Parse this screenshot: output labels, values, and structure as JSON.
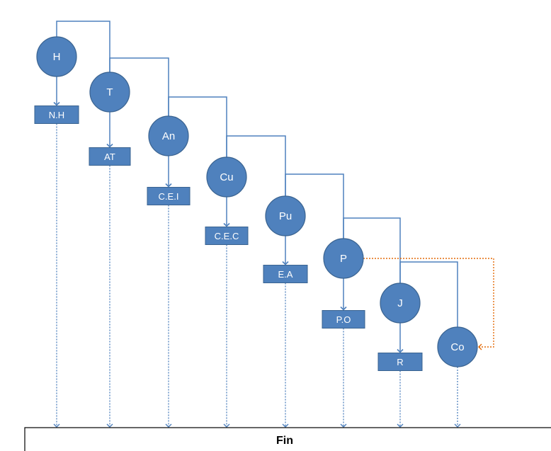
{
  "colors": {
    "node_fill": "#4f81bd",
    "node_stroke": "#3a6390",
    "connector": "#4f81bd",
    "dotted_arrow": "#4f81bd",
    "feedback_arrow": "#e46c0a",
    "fin_border": "#000000"
  },
  "nodes": [
    {
      "id": "H",
      "label": "H",
      "box": "N.H"
    },
    {
      "id": "T",
      "label": "T",
      "box": "AT"
    },
    {
      "id": "An",
      "label": "An",
      "box": "C.E.I"
    },
    {
      "id": "Cu",
      "label": "Cu",
      "box": "C.E.C"
    },
    {
      "id": "Pu",
      "label": "Pu",
      "box": "E.A"
    },
    {
      "id": "P",
      "label": "P",
      "box": "P.O"
    },
    {
      "id": "J",
      "label": "J",
      "box": "R"
    },
    {
      "id": "Co",
      "label": "Co",
      "box": null
    }
  ],
  "feedback": {
    "from": "P",
    "to": "Co"
  },
  "fin": {
    "label": "Fin"
  }
}
